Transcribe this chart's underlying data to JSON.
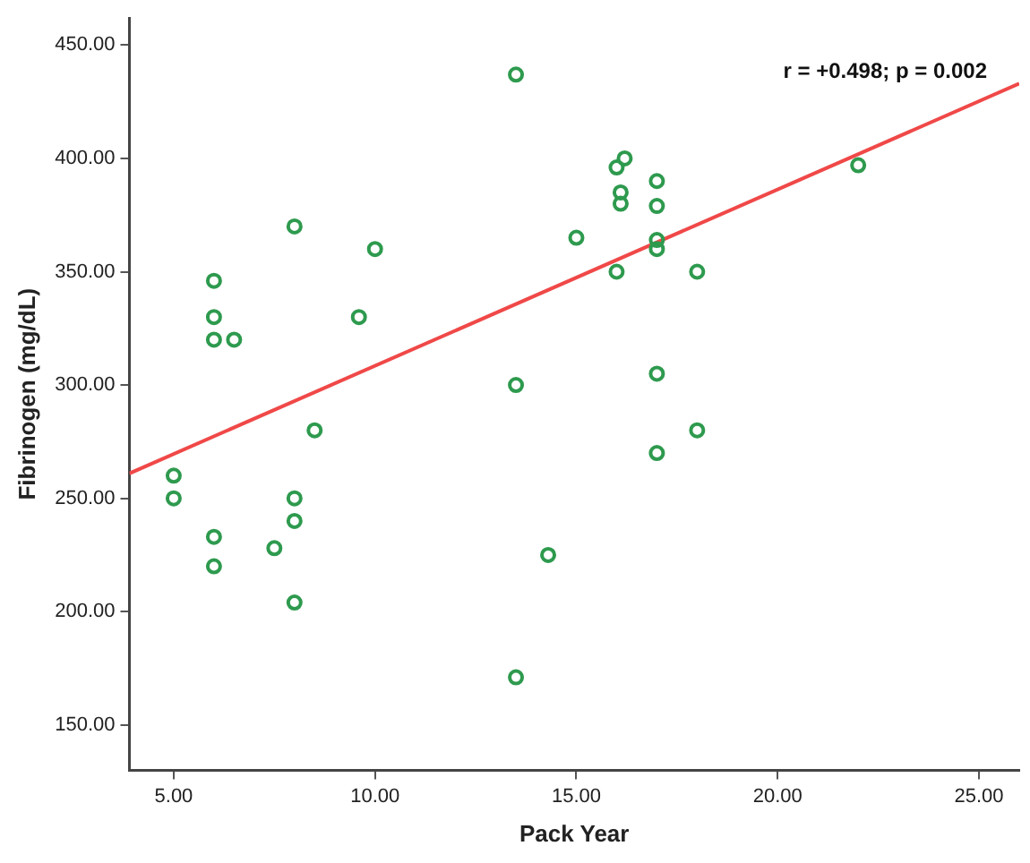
{
  "chart_data": {
    "type": "scatter",
    "xlabel": "Pack Year",
    "ylabel": "Fibrinogen (mg/dL)",
    "xlim": [
      3.9,
      26
    ],
    "ylim": [
      130,
      462
    ],
    "xticks": [
      {
        "value": 5,
        "label": "5.00"
      },
      {
        "value": 10,
        "label": "10.00"
      },
      {
        "value": 15,
        "label": "15.00"
      },
      {
        "value": 20,
        "label": "20.00"
      },
      {
        "value": 25,
        "label": "25.00"
      }
    ],
    "yticks": [
      {
        "value": 150,
        "label": "150.00"
      },
      {
        "value": 200,
        "label": "200.00"
      },
      {
        "value": 250,
        "label": "250.00"
      },
      {
        "value": 300,
        "label": "300.00"
      },
      {
        "value": 350,
        "label": "350.00"
      },
      {
        "value": 400,
        "label": "400.00"
      },
      {
        "value": 450,
        "label": "450.00"
      }
    ],
    "grid": false,
    "legend": false,
    "marker": "circle",
    "annotations": [
      "r = +0.498; p = 0.002"
    ],
    "series": [
      {
        "color": "#2e9a4e",
        "x": [
          5,
          5,
          6,
          6,
          6,
          6.5,
          6,
          6,
          7.5,
          8,
          8,
          8,
          8,
          8.5,
          9.6,
          10,
          13.5,
          13.5,
          13.5,
          14.3,
          15,
          16,
          16.2,
          16.1,
          16.1,
          16,
          17,
          17,
          17,
          17,
          17,
          17,
          18,
          18,
          22
        ],
        "values": [
          260,
          250,
          346,
          330,
          320,
          320,
          233,
          220,
          228,
          370,
          250,
          240,
          204,
          280,
          330,
          360,
          437,
          300,
          171,
          225,
          365,
          396,
          400,
          385,
          380,
          350,
          390,
          379,
          364,
          360,
          305,
          270,
          350,
          280,
          397
        ]
      },
      {
        "type": "line",
        "color": "#f04848",
        "marker": "none",
        "x": [
          3.9,
          26
        ],
        "values": [
          261,
          433
        ]
      }
    ]
  }
}
